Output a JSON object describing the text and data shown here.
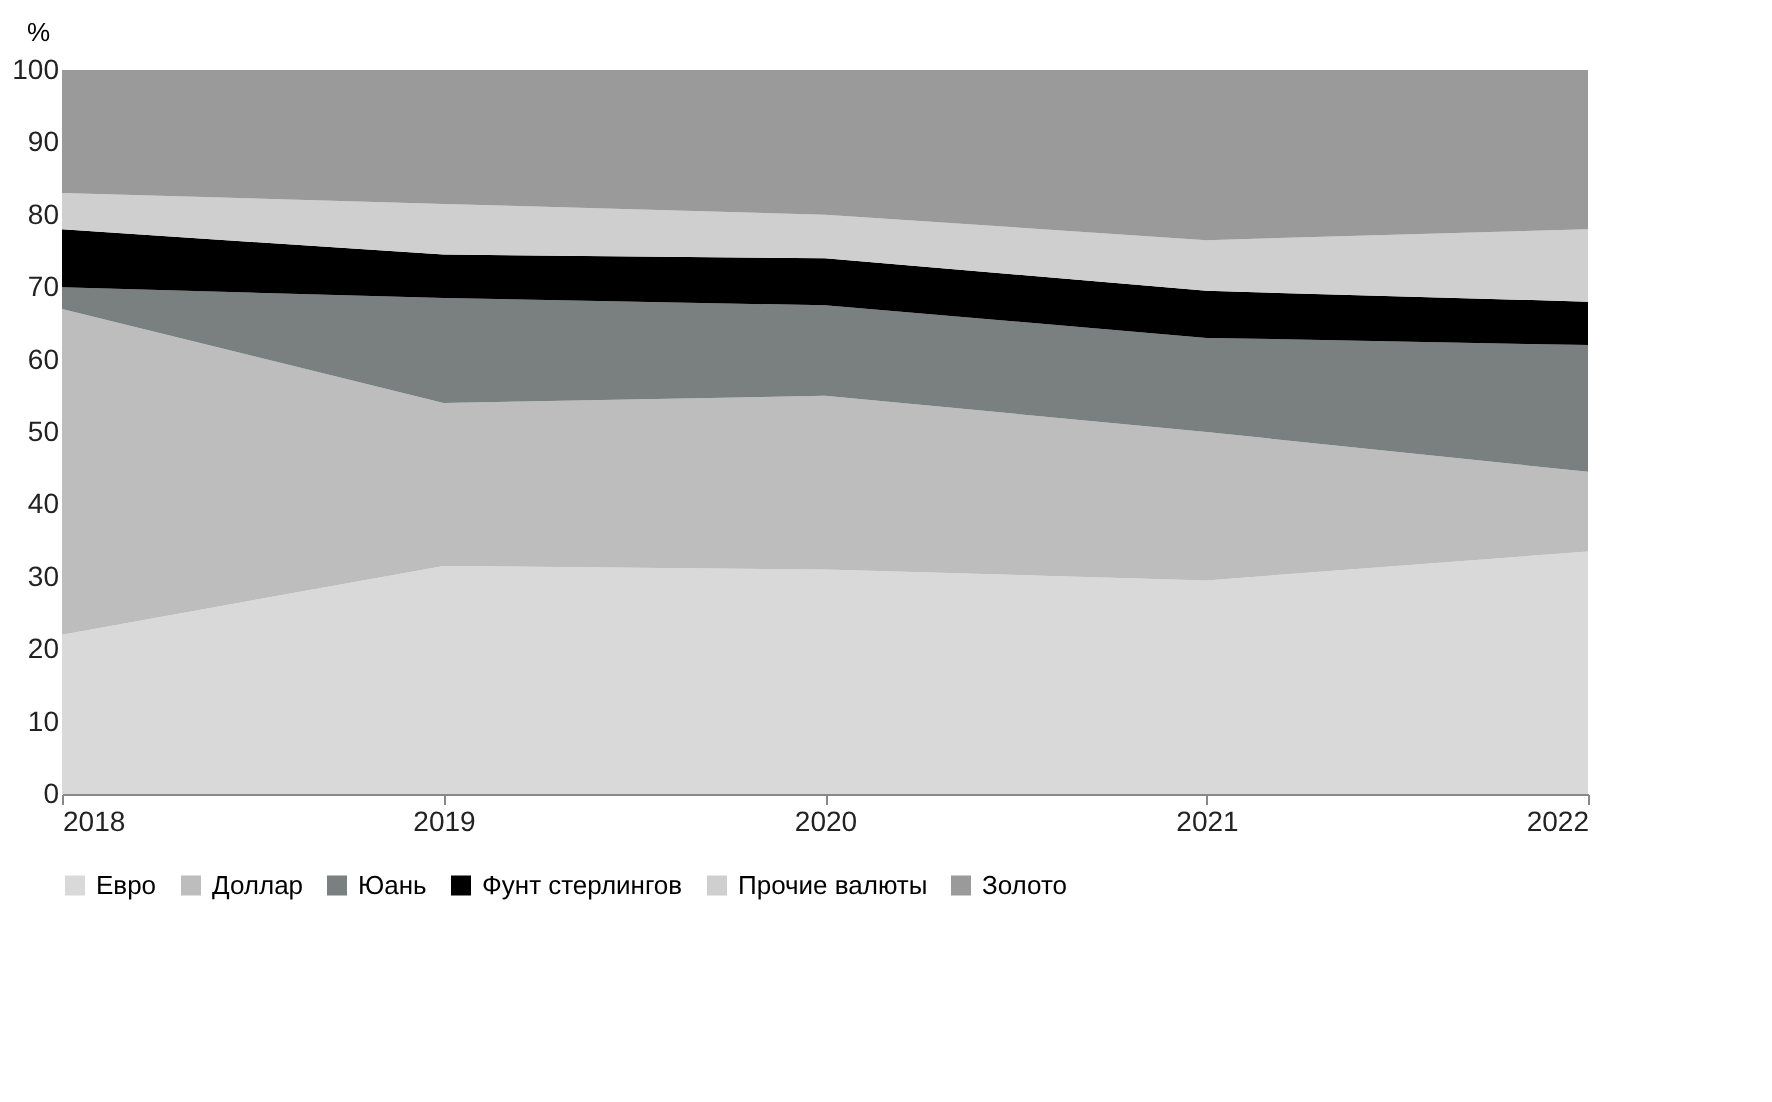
{
  "chart_data": {
    "type": "area",
    "stacked": true,
    "ylabel": "%",
    "categories": [
      "2018",
      "2019",
      "2020",
      "2021",
      "2022"
    ],
    "series": [
      {
        "name": "Евро",
        "color": "#d9d9d9",
        "values": [
          22,
          31.5,
          31,
          29.5,
          33.5
        ]
      },
      {
        "name": "Доллар",
        "color": "#bdbdbd",
        "values": [
          45,
          22.5,
          24,
          20.5,
          11
        ]
      },
      {
        "name": "Юань",
        "color": "#7a8080",
        "values": [
          3,
          14.5,
          12.5,
          13,
          17.5
        ]
      },
      {
        "name": "Фунт стерлингов",
        "color": "#000000",
        "values": [
          8,
          6,
          6.5,
          6.5,
          6
        ]
      },
      {
        "name": "Прочие валюты",
        "color": "#cfcfcf",
        "values": [
          5,
          7,
          6,
          7,
          10
        ]
      },
      {
        "name": "Золото",
        "color": "#9a9a9a",
        "values": [
          17,
          18.5,
          20,
          23.5,
          22
        ]
      }
    ],
    "ylim": [
      0,
      100
    ],
    "yticks": [
      0,
      10,
      20,
      30,
      40,
      50,
      60,
      70,
      80,
      90,
      100
    ],
    "grid": false,
    "legend": "bottom"
  }
}
